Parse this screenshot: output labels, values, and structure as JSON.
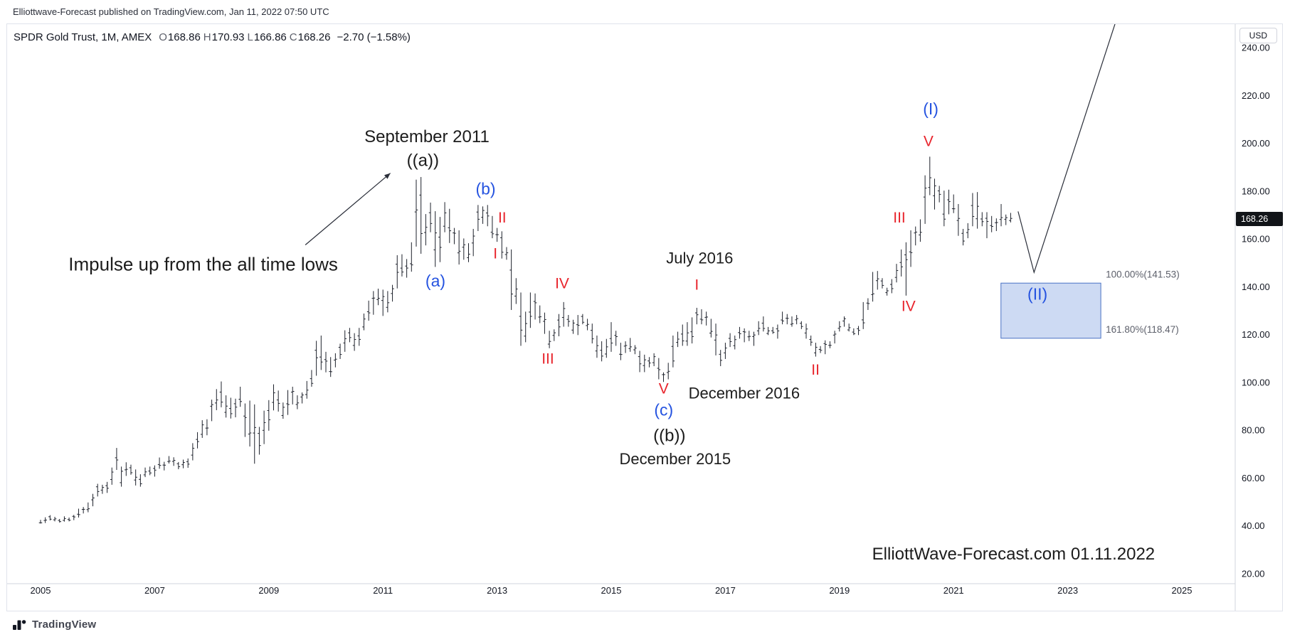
{
  "attribution": "Elliottwave-Forecast published on TradingView.com, Jan 11, 2022 07:50 UTC",
  "header": {
    "symbol": "SPDR Gold Trust, 1M, AMEX",
    "o_label": "O",
    "o_value": "168.86",
    "h_label": "H",
    "h_value": "170.93",
    "l_label": "L",
    "l_value": "166.86",
    "c_label": "C",
    "c_value": "168.26",
    "change": "−2.70 (−1.58%)"
  },
  "price_axis": {
    "currency": "USD",
    "last_price": "168.26",
    "labels": [
      "240.00",
      "220.00",
      "200.00",
      "180.00",
      "160.00",
      "140.00",
      "120.00",
      "100.00",
      "80.00",
      "60.00",
      "40.00",
      "20.00"
    ]
  },
  "time_axis": {
    "labels": [
      "2005",
      "2007",
      "2009",
      "2011",
      "2013",
      "2015",
      "2017",
      "2019",
      "2021",
      "2023",
      "2025"
    ]
  },
  "annotations": [
    {
      "name": "label-september-2011",
      "text": "September 2011",
      "year": 2011.77,
      "price": 203.0,
      "color": "#1c1c1c",
      "size": 24
    },
    {
      "name": "wave-a-double-paren-label",
      "text": "((a))",
      "year": 2011.7,
      "price": 193.0,
      "color": "#1c1c1c",
      "size": 24
    },
    {
      "name": "wave-b-blue-label",
      "text": "(b)",
      "year": 2012.8,
      "price": 181.0,
      "color": "#2553e0",
      "size": 23
    },
    {
      "name": "wave-ii-red-2013-label",
      "text": "II",
      "year": 2013.09,
      "price": 169.0,
      "color": "#e8242c",
      "size": 21
    },
    {
      "name": "wave-i-red-2013-label",
      "text": "I",
      "year": 2012.97,
      "price": 154.0,
      "color": "#e8242c",
      "size": 21
    },
    {
      "name": "wave-a-blue-label",
      "text": "(a)",
      "year": 2011.92,
      "price": 142.5,
      "color": "#2553e0",
      "size": 23
    },
    {
      "name": "impulse-callout-text",
      "text": "Impulse up from the all time lows",
      "year": 2007.85,
      "price": 149.5,
      "color": "#1c1c1c",
      "size": 26
    },
    {
      "name": "wave-iv-red-2014-label",
      "text": "IV",
      "year": 2014.14,
      "price": 141.5,
      "color": "#e8242c",
      "size": 21
    },
    {
      "name": "wave-iii-red-2013-label",
      "text": "III",
      "year": 2013.89,
      "price": 110.0,
      "color": "#e8242c",
      "size": 21
    },
    {
      "name": "label-july-2016",
      "text": "July 2016",
      "year": 2016.55,
      "price": 152.0,
      "color": "#1c1c1c",
      "size": 22
    },
    {
      "name": "wave-i-red-2016-label",
      "text": "I",
      "year": 2016.5,
      "price": 141.0,
      "color": "#e8242c",
      "size": 21
    },
    {
      "name": "wave-v-red-2015-label",
      "text": "V",
      "year": 2015.92,
      "price": 97.5,
      "color": "#e8242c",
      "size": 21
    },
    {
      "name": "label-december-2016",
      "text": "December 2016",
      "year": 2017.33,
      "price": 95.5,
      "color": "#1c1c1c",
      "size": 22
    },
    {
      "name": "wave-c-blue-label",
      "text": "(c)",
      "year": 2015.92,
      "price": 88.5,
      "color": "#2553e0",
      "size": 23
    },
    {
      "name": "wave-b-double-paren-label",
      "text": "((b))",
      "year": 2016.02,
      "price": 78.0,
      "color": "#1c1c1c",
      "size": 24
    },
    {
      "name": "label-december-2015",
      "text": "December 2015",
      "year": 2016.12,
      "price": 68.0,
      "color": "#1c1c1c",
      "size": 22
    },
    {
      "name": "wave-ii-red-2018-label",
      "text": "II",
      "year": 2018.58,
      "price": 105.5,
      "color": "#e8242c",
      "size": 21
    },
    {
      "name": "wave-iii-red-2020-label",
      "text": "III",
      "year": 2020.05,
      "price": 169.0,
      "color": "#e8242c",
      "size": 21
    },
    {
      "name": "wave-iv-red-2020-label",
      "text": "IV",
      "year": 2020.21,
      "price": 132.0,
      "color": "#e8242c",
      "size": 21
    },
    {
      "name": "wave-cap-i-blue-label",
      "text": "(I)",
      "year": 2020.6,
      "price": 214.5,
      "color": "#2553e0",
      "size": 23
    },
    {
      "name": "wave-v-red-2020-label",
      "text": "V",
      "year": 2020.56,
      "price": 201.0,
      "color": "#e8242c",
      "size": 21
    },
    {
      "name": "wave-cap-ii-blue-label",
      "text": "(II)",
      "year": 2022.47,
      "price": 137.0,
      "color": "#2553e0",
      "size": 23
    },
    {
      "name": "watermark-elliottwave-forecast",
      "text": "ElliottWave-Forecast.com 01.11.2022",
      "year": 2022.05,
      "price": 28.5,
      "color": "#1c1c1c",
      "size": 24
    }
  ],
  "drawings": {
    "impulse_arrow": {
      "from": {
        "year": 2009.64,
        "price": 157.5
      },
      "to": {
        "year": 2011.13,
        "price": 187.5
      }
    },
    "projection_path": [
      {
        "year": 2022.13,
        "price": 171.5
      },
      {
        "year": 2022.41,
        "price": 146.0
      },
      {
        "year": 2023.83,
        "price": 250.0
      }
    ],
    "fib_box": {
      "x1_year": 2021.83,
      "x2_year": 2023.58,
      "top_price": 141.53,
      "bottom_price": 118.47,
      "fill": "rgba(113,150,221,0.35)",
      "stroke": "#4a72c4"
    },
    "fib_labels": [
      {
        "text": "100.00%(141.53)",
        "price": 145.0
      },
      {
        "text": "161.80%(118.47)",
        "price": 122.0
      }
    ]
  },
  "footer": {
    "brand": "TradingView"
  },
  "chart_data": {
    "type": "ohlc-bars",
    "title": "SPDR Gold Trust, 1M, AMEX",
    "x_start_year": 2005.0,
    "bar_interval_months": 1,
    "x_axis_years": [
      2005,
      2025
    ],
    "y_axis_range": [
      20,
      240
    ],
    "last_close": 168.26,
    "bars_hi_lo": [
      [
        42.5,
        41.0
      ],
      [
        43.6,
        41.2
      ],
      [
        44.5,
        42.3
      ],
      [
        43.8,
        41.9
      ],
      [
        42.9,
        41.4
      ],
      [
        44.0,
        41.8
      ],
      [
        43.5,
        41.9
      ],
      [
        44.6,
        42.4
      ],
      [
        47.2,
        43.5
      ],
      [
        47.9,
        45.2
      ],
      [
        49.8,
        45.7
      ],
      [
        53.4,
        48.2
      ],
      [
        57.6,
        52.3
      ],
      [
        57.2,
        53.4
      ],
      [
        58.4,
        53.8
      ],
      [
        64.4,
        57.2
      ],
      [
        72.6,
        63.4
      ],
      [
        64.8,
        56.4
      ],
      [
        66.6,
        60.9
      ],
      [
        65.6,
        61.4
      ],
      [
        63.6,
        56.9
      ],
      [
        61.6,
        56.4
      ],
      [
        64.4,
        60.4
      ],
      [
        64.8,
        61.2
      ],
      [
        65.3,
        60.6
      ],
      [
        68.6,
        63.9
      ],
      [
        66.8,
        63.2
      ],
      [
        69.2,
        66.1
      ],
      [
        68.7,
        65.1
      ],
      [
        66.7,
        63.7
      ],
      [
        67.7,
        64.1
      ],
      [
        68.2,
        64.3
      ],
      [
        74.6,
        67.4
      ],
      [
        79.2,
        72.4
      ],
      [
        84.2,
        76.8
      ],
      [
        84.6,
        77.9
      ],
      [
        92.8,
        83.8
      ],
      [
        97.2,
        88.4
      ],
      [
        100.4,
        89.6
      ],
      [
        94.6,
        85.3
      ],
      [
        93.6,
        84.9
      ],
      [
        93.2,
        85.4
      ],
      [
        98.2,
        89.8
      ],
      [
        91.2,
        77.2
      ],
      [
        92.4,
        73.2
      ],
      [
        90.8,
        66.0
      ],
      [
        81.4,
        69.8
      ],
      [
        88.2,
        74.2
      ],
      [
        92.6,
        79.8
      ],
      [
        99.2,
        88.3
      ],
      [
        96.6,
        87.8
      ],
      [
        91.6,
        84.8
      ],
      [
        96.8,
        86.4
      ],
      [
        98.2,
        90.8
      ],
      [
        94.6,
        88.8
      ],
      [
        95.8,
        91.2
      ],
      [
        100.6,
        93.2
      ],
      [
        105.2,
        98.2
      ],
      [
        117.4,
        102.8
      ],
      [
        119.6,
        105.2
      ],
      [
        112.8,
        104.2
      ],
      [
        110.6,
        102.3
      ],
      [
        112.2,
        106.3
      ],
      [
        116.2,
        109.8
      ],
      [
        121.8,
        112.8
      ],
      [
        122.8,
        116.8
      ],
      [
        120.6,
        113.2
      ],
      [
        122.8,
        115.3
      ],
      [
        128.8,
        121.8
      ],
      [
        134.2,
        125.8
      ],
      [
        138.2,
        128.3
      ],
      [
        139.2,
        132.3
      ],
      [
        138.8,
        127.8
      ],
      [
        138.2,
        129.3
      ],
      [
        140.8,
        133.8
      ],
      [
        153.2,
        139.3
      ],
      [
        153.6,
        144.3
      ],
      [
        151.6,
        143.8
      ],
      [
        158.6,
        146.3
      ],
      [
        184.8,
        156.8
      ],
      [
        185.9,
        153.8
      ],
      [
        170.4,
        157.3
      ],
      [
        175.2,
        162.8
      ],
      [
        171.6,
        148.3
      ],
      [
        169.2,
        150.3
      ],
      [
        175.4,
        162.8
      ],
      [
        172.6,
        158.3
      ],
      [
        164.6,
        157.8
      ],
      [
        163.6,
        149.3
      ],
      [
        160.2,
        151.3
      ],
      [
        158.2,
        150.3
      ],
      [
        164.2,
        152.8
      ],
      [
        174.2,
        163.3
      ],
      [
        173.6,
        166.3
      ],
      [
        174.2,
        165.3
      ],
      [
        169.6,
        160.3
      ],
      [
        164.6,
        158.8
      ],
      [
        163.2,
        151.8
      ],
      [
        156.6,
        151.3
      ],
      [
        155.6,
        130.3
      ],
      [
        143.6,
        132.8
      ],
      [
        137.6,
        115.3
      ],
      [
        129.6,
        116.8
      ],
      [
        137.6,
        122.8
      ],
      [
        137.2,
        126.3
      ],
      [
        132.2,
        124.8
      ],
      [
        129.2,
        120.3
      ],
      [
        121.6,
        114.3
      ],
      [
        122.2,
        117.3
      ],
      [
        128.6,
        119.3
      ],
      [
        133.6,
        123.3
      ],
      [
        128.2,
        123.3
      ],
      [
        126.2,
        120.3
      ],
      [
        128.2,
        119.8
      ],
      [
        128.6,
        124.3
      ],
      [
        126.6,
        121.8
      ],
      [
        124.6,
        116.3
      ],
      [
        119.6,
        110.3
      ],
      [
        117.2,
        108.8
      ],
      [
        118.2,
        110.3
      ],
      [
        125.2,
        112.8
      ],
      [
        121.6,
        115.3
      ],
      [
        116.6,
        109.3
      ],
      [
        117.2,
        112.3
      ],
      [
        118.6,
        112.8
      ],
      [
        115.6,
        111.8
      ],
      [
        113.2,
        104.3
      ],
      [
        111.6,
        104.3
      ],
      [
        110.6,
        106.3
      ],
      [
        112.2,
        106.8
      ],
      [
        110.2,
        101.3
      ],
      [
        104.2,
        100.2
      ],
      [
        108.2,
        101.3
      ],
      [
        119.6,
        106.3
      ],
      [
        121.2,
        114.8
      ],
      [
        124.2,
        115.3
      ],
      [
        125.2,
        115.3
      ],
      [
        127.2,
        116.3
      ],
      [
        131.2,
        124.3
      ],
      [
        130.6,
        124.3
      ],
      [
        129.6,
        123.8
      ],
      [
        126.6,
        118.8
      ],
      [
        124.6,
        111.3
      ],
      [
        113.6,
        106.8
      ],
      [
        116.6,
        109.8
      ],
      [
        120.6,
        114.8
      ],
      [
        119.6,
        113.8
      ],
      [
        123.2,
        118.3
      ],
      [
        122.6,
        116.8
      ],
      [
        121.6,
        117.3
      ],
      [
        121.2,
        115.3
      ],
      [
        125.6,
        119.8
      ],
      [
        127.6,
        121.3
      ],
      [
        123.2,
        119.8
      ],
      [
        123.2,
        120.3
      ],
      [
        124.2,
        118.3
      ],
      [
        129.6,
        124.3
      ],
      [
        128.6,
        124.3
      ],
      [
        127.6,
        123.3
      ],
      [
        128.2,
        124.3
      ],
      [
        125.6,
        122.3
      ],
      [
        124.6,
        118.3
      ],
      [
        119.6,
        115.3
      ],
      [
        116.6,
        110.8
      ],
      [
        115.2,
        112.3
      ],
      [
        117.6,
        111.8
      ],
      [
        117.2,
        114.3
      ],
      [
        121.6,
        116.3
      ],
      [
        125.6,
        121.3
      ],
      [
        127.6,
        123.3
      ],
      [
        124.6,
        121.3
      ],
      [
        122.6,
        119.8
      ],
      [
        123.6,
        119.8
      ],
      [
        133.6,
        122.3
      ],
      [
        135.2,
        130.3
      ],
      [
        146.2,
        133.8
      ],
      [
        146.6,
        138.8
      ],
      [
        143.6,
        139.3
      ],
      [
        139.6,
        136.3
      ],
      [
        143.2,
        137.3
      ],
      [
        149.6,
        141.8
      ],
      [
        155.6,
        144.3
      ],
      [
        158.6,
        136.3
      ],
      [
        163.6,
        148.3
      ],
      [
        165.2,
        157.3
      ],
      [
        168.2,
        158.8
      ],
      [
        186.6,
        166.3
      ],
      [
        194.4,
        178.3
      ],
      [
        185.2,
        172.3
      ],
      [
        182.2,
        175.3
      ],
      [
        180.2,
        165.3
      ],
      [
        180.6,
        170.3
      ],
      [
        178.6,
        170.8
      ],
      [
        174.6,
        161.3
      ],
      [
        164.2,
        157.3
      ],
      [
        166.6,
        160.3
      ],
      [
        179.2,
        165.3
      ],
      [
        179.6,
        164.3
      ],
      [
        171.2,
        165.3
      ],
      [
        171.2,
        160.3
      ],
      [
        169.6,
        162.8
      ],
      [
        168.6,
        163.3
      ],
      [
        174.6,
        165.3
      ],
      [
        170.2,
        165.8
      ],
      [
        170.9,
        166.9
      ]
    ]
  }
}
